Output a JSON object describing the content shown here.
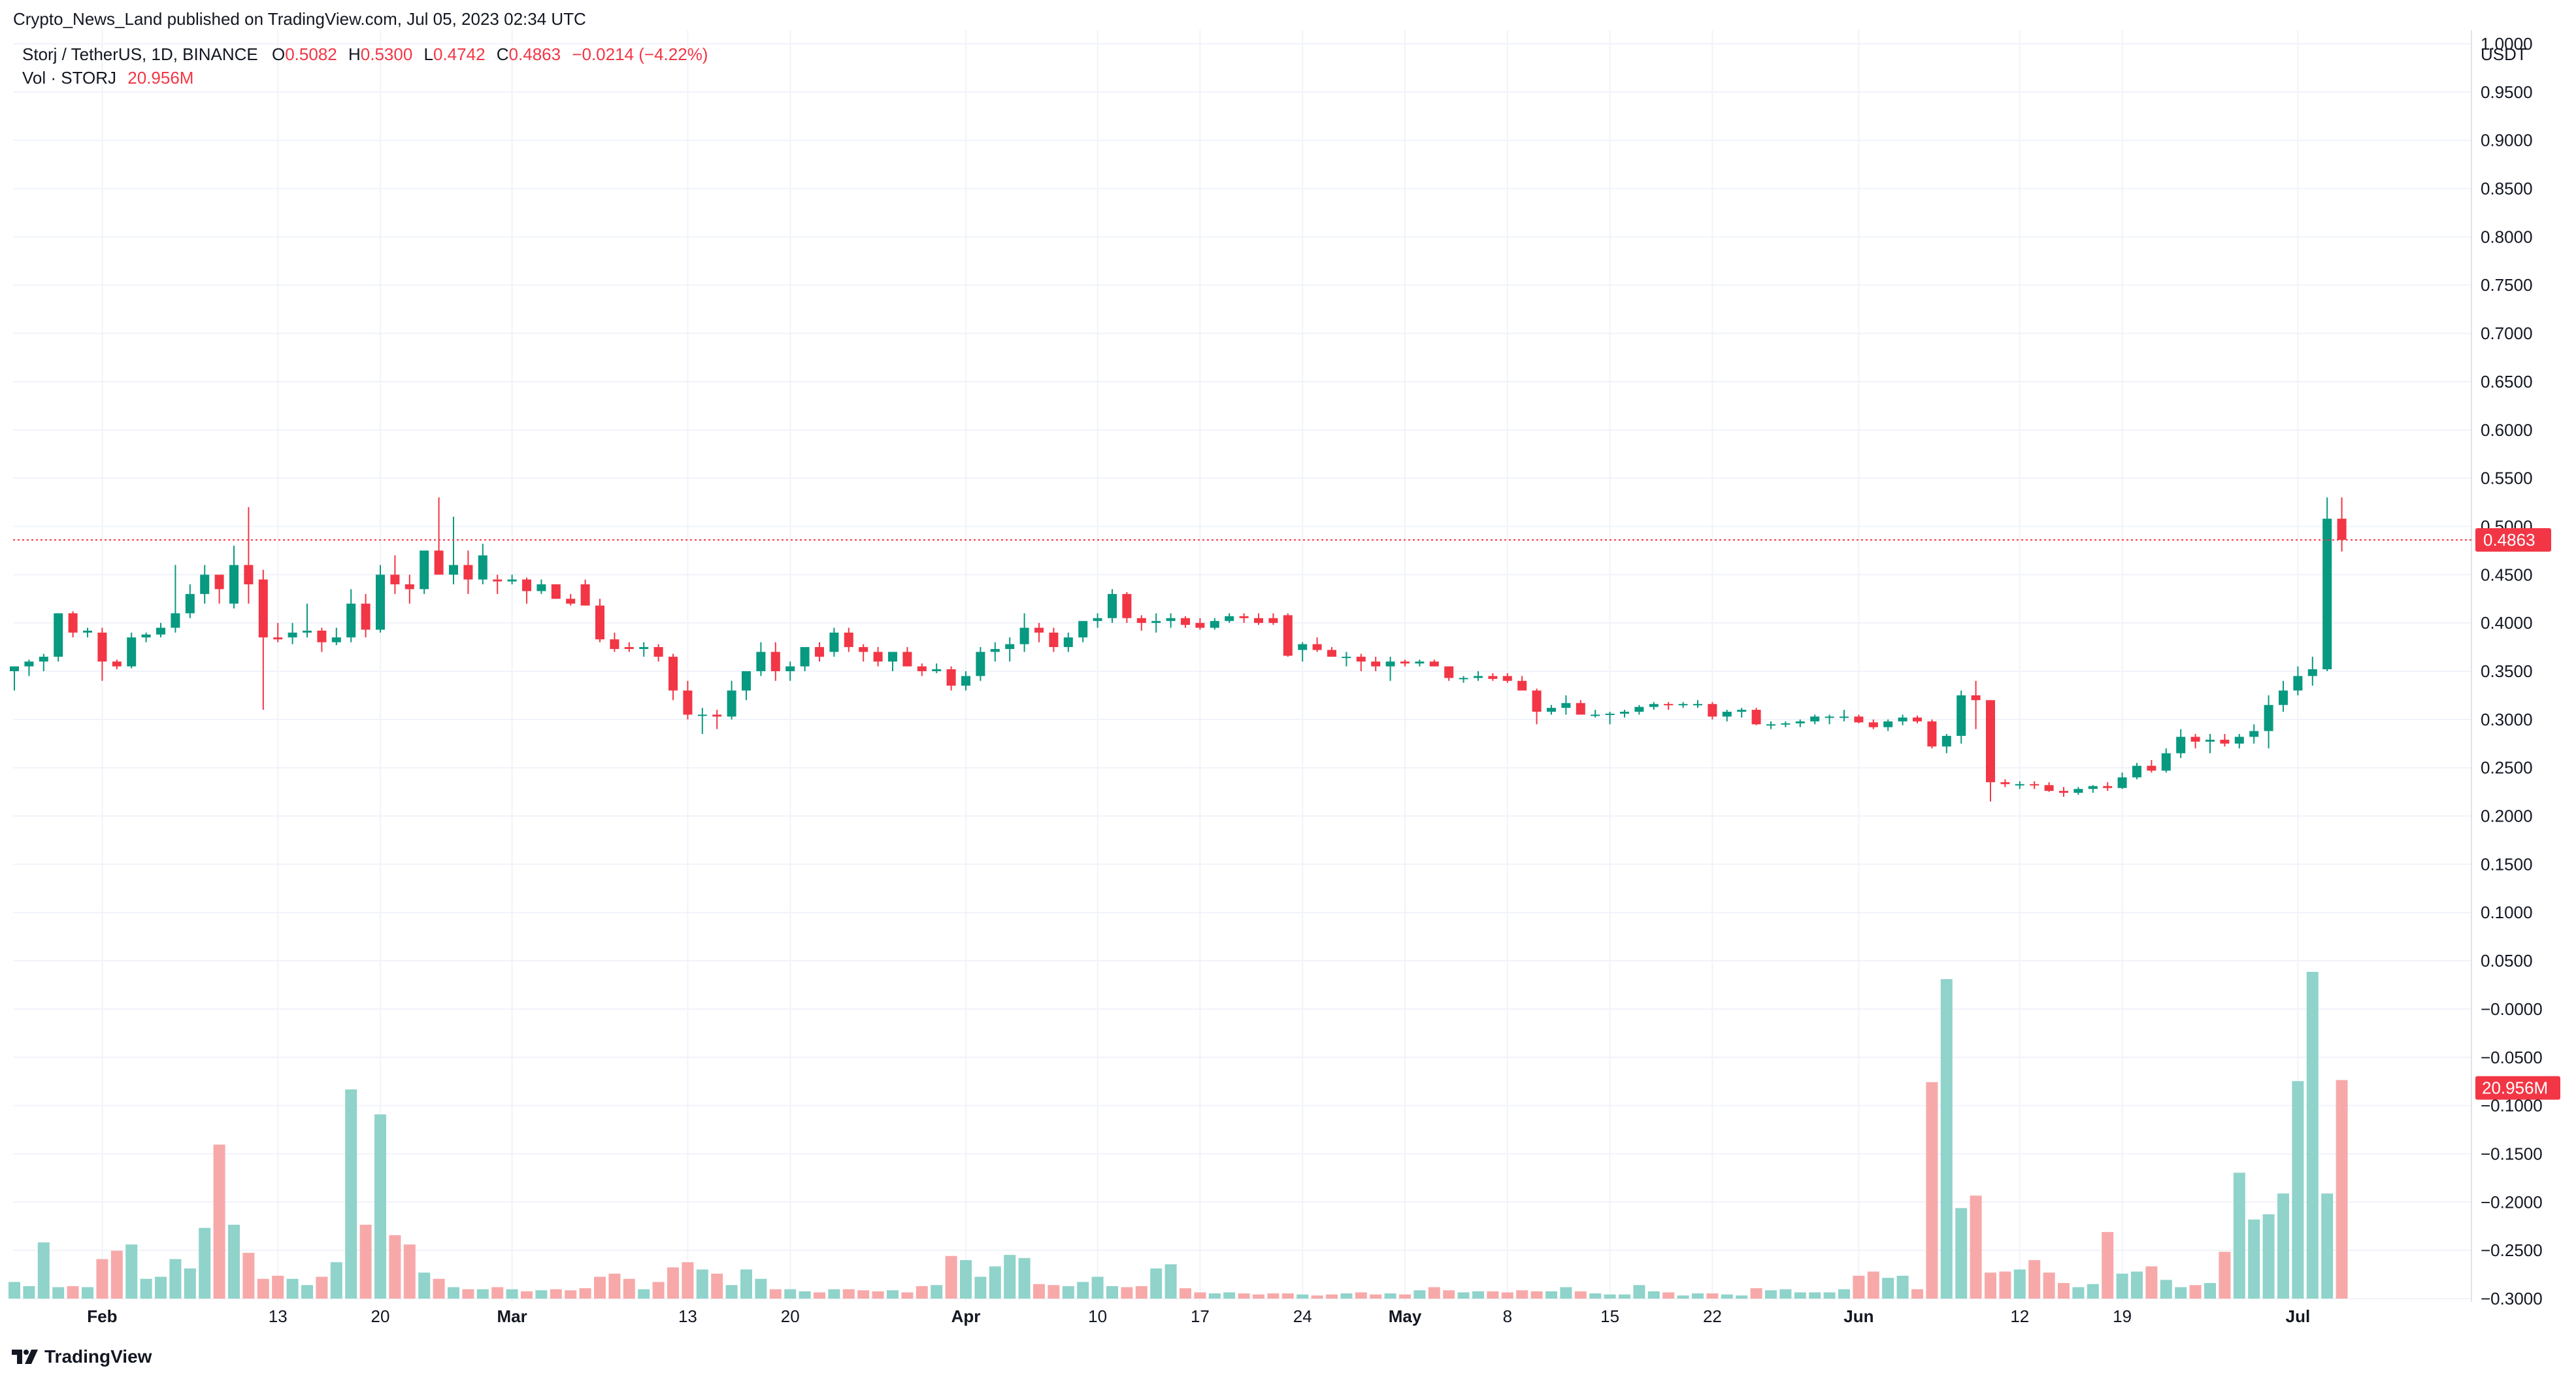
{
  "header": {
    "published": "Crypto_News_Land published on TradingView.com, Jul 05, 2023 02:34 UTC",
    "symbol": "Storj / TetherUS, 1D, BINANCE",
    "o_label": "O",
    "o_value": "0.5082",
    "h_label": "H",
    "h_value": "0.5300",
    "l_label": "L",
    "l_value": "0.4742",
    "c_label": "C",
    "c_value": "0.4863",
    "change": "−0.0214 (−4.22%)",
    "vol_label": "Vol · STORJ",
    "vol_value": "20.956M"
  },
  "footer": {
    "brand": "TradingView"
  },
  "colors": {
    "up": "#089981",
    "down": "#f23645",
    "vol_up": "#8fd3ca",
    "vol_down": "#f7a9a9",
    "grid": "#f0f3fa"
  },
  "chart_data": {
    "type": "candlestick",
    "currency": "USDT",
    "y_ticks": [
      "1.0000",
      "0.9500",
      "0.9000",
      "0.8500",
      "0.8000",
      "0.7500",
      "0.7000",
      "0.6500",
      "0.6000",
      "0.5500",
      "0.5000",
      "0.4500",
      "0.4000",
      "0.3500",
      "0.3000",
      "0.2500",
      "0.2000",
      "0.1500",
      "0.1000",
      "0.0500",
      "−0.0000",
      "−0.0500",
      "−0.1000",
      "−0.1500",
      "−0.2000",
      "−0.2500",
      "−0.3000"
    ],
    "ylim": [
      -0.3,
      1.0
    ],
    "x_ticks": [
      {
        "label": "Feb",
        "index": 6
      },
      {
        "label": "13",
        "index": 18
      },
      {
        "label": "20",
        "index": 25
      },
      {
        "label": "Mar",
        "index": 34
      },
      {
        "label": "13",
        "index": 46
      },
      {
        "label": "20",
        "index": 53
      },
      {
        "label": "Apr",
        "index": 65
      },
      {
        "label": "10",
        "index": 74
      },
      {
        "label": "17",
        "index": 81
      },
      {
        "label": "24",
        "index": 88
      },
      {
        "label": "May",
        "index": 95
      },
      {
        "label": "8",
        "index": 102
      },
      {
        "label": "15",
        "index": 109
      },
      {
        "label": "22",
        "index": 116
      },
      {
        "label": "Jun",
        "index": 126
      },
      {
        "label": "12",
        "index": 137
      },
      {
        "label": "19",
        "index": 144
      },
      {
        "label": "Jul",
        "index": 156
      }
    ],
    "last_price": "0.4863",
    "last_volume": "20.956M",
    "ohlc": [
      [
        0.35,
        0.355,
        0.33,
        0.355
      ],
      [
        0.355,
        0.362,
        0.345,
        0.36
      ],
      [
        0.36,
        0.368,
        0.35,
        0.365
      ],
      [
        0.365,
        0.41,
        0.36,
        0.41
      ],
      [
        0.41,
        0.412,
        0.385,
        0.39
      ],
      [
        0.39,
        0.395,
        0.385,
        0.392
      ],
      [
        0.39,
        0.395,
        0.34,
        0.36
      ],
      [
        0.36,
        0.362,
        0.352,
        0.355
      ],
      [
        0.355,
        0.39,
        0.353,
        0.385
      ],
      [
        0.385,
        0.39,
        0.38,
        0.388
      ],
      [
        0.388,
        0.4,
        0.385,
        0.395
      ],
      [
        0.395,
        0.46,
        0.39,
        0.41
      ],
      [
        0.41,
        0.44,
        0.405,
        0.43
      ],
      [
        0.43,
        0.46,
        0.42,
        0.45
      ],
      [
        0.45,
        0.44,
        0.42,
        0.435
      ],
      [
        0.42,
        0.48,
        0.415,
        0.46
      ],
      [
        0.46,
        0.52,
        0.42,
        0.44
      ],
      [
        0.445,
        0.455,
        0.31,
        0.385
      ],
      [
        0.385,
        0.4,
        0.38,
        0.383
      ],
      [
        0.385,
        0.4,
        0.378,
        0.39
      ],
      [
        0.39,
        0.42,
        0.385,
        0.392
      ],
      [
        0.392,
        0.395,
        0.37,
        0.38
      ],
      [
        0.38,
        0.395,
        0.377,
        0.385
      ],
      [
        0.385,
        0.435,
        0.38,
        0.42
      ],
      [
        0.42,
        0.43,
        0.385,
        0.393
      ],
      [
        0.393,
        0.46,
        0.39,
        0.45
      ],
      [
        0.45,
        0.47,
        0.43,
        0.44
      ],
      [
        0.44,
        0.45,
        0.42,
        0.435
      ],
      [
        0.435,
        0.47,
        0.43,
        0.475
      ],
      [
        0.475,
        0.53,
        0.46,
        0.45
      ],
      [
        0.45,
        0.51,
        0.44,
        0.46
      ],
      [
        0.46,
        0.475,
        0.43,
        0.445
      ],
      [
        0.445,
        0.482,
        0.44,
        0.47
      ],
      [
        0.445,
        0.45,
        0.43,
        0.443
      ],
      [
        0.443,
        0.45,
        0.44,
        0.445
      ],
      [
        0.445,
        0.447,
        0.42,
        0.433
      ],
      [
        0.433,
        0.445,
        0.43,
        0.44
      ],
      [
        0.44,
        0.44,
        0.425,
        0.425
      ],
      [
        0.425,
        0.43,
        0.418,
        0.42
      ],
      [
        0.44,
        0.445,
        0.42,
        0.418
      ],
      [
        0.418,
        0.425,
        0.38,
        0.383
      ],
      [
        0.383,
        0.39,
        0.37,
        0.373
      ],
      [
        0.375,
        0.38,
        0.37,
        0.373
      ],
      [
        0.373,
        0.38,
        0.365,
        0.375
      ],
      [
        0.375,
        0.378,
        0.36,
        0.365
      ],
      [
        0.365,
        0.368,
        0.32,
        0.33
      ],
      [
        0.33,
        0.34,
        0.3,
        0.305
      ],
      [
        0.305,
        0.312,
        0.285,
        0.305
      ],
      [
        0.305,
        0.31,
        0.29,
        0.303
      ],
      [
        0.303,
        0.34,
        0.3,
        0.33
      ],
      [
        0.33,
        0.345,
        0.32,
        0.35
      ],
      [
        0.35,
        0.38,
        0.345,
        0.37
      ],
      [
        0.37,
        0.38,
        0.34,
        0.35
      ],
      [
        0.35,
        0.36,
        0.34,
        0.355
      ],
      [
        0.355,
        0.37,
        0.35,
        0.375
      ],
      [
        0.375,
        0.38,
        0.36,
        0.365
      ],
      [
        0.37,
        0.395,
        0.365,
        0.39
      ],
      [
        0.39,
        0.395,
        0.37,
        0.375
      ],
      [
        0.375,
        0.378,
        0.36,
        0.37
      ],
      [
        0.37,
        0.375,
        0.355,
        0.36
      ],
      [
        0.36,
        0.37,
        0.35,
        0.37
      ],
      [
        0.37,
        0.375,
        0.355,
        0.355
      ],
      [
        0.355,
        0.358,
        0.345,
        0.35
      ],
      [
        0.35,
        0.358,
        0.348,
        0.352
      ],
      [
        0.352,
        0.355,
        0.33,
        0.335
      ],
      [
        0.335,
        0.35,
        0.33,
        0.345
      ],
      [
        0.345,
        0.375,
        0.34,
        0.37
      ],
      [
        0.37,
        0.38,
        0.36,
        0.373
      ],
      [
        0.373,
        0.385,
        0.36,
        0.378
      ],
      [
        0.378,
        0.41,
        0.37,
        0.395
      ],
      [
        0.395,
        0.4,
        0.38,
        0.39
      ],
      [
        0.39,
        0.395,
        0.37,
        0.375
      ],
      [
        0.375,
        0.39,
        0.37,
        0.385
      ],
      [
        0.385,
        0.4,
        0.38,
        0.402
      ],
      [
        0.402,
        0.41,
        0.395,
        0.405
      ],
      [
        0.405,
        0.435,
        0.4,
        0.43
      ],
      [
        0.43,
        0.432,
        0.4,
        0.405
      ],
      [
        0.405,
        0.408,
        0.392,
        0.4
      ],
      [
        0.4,
        0.41,
        0.39,
        0.402
      ],
      [
        0.402,
        0.41,
        0.395,
        0.405
      ],
      [
        0.405,
        0.407,
        0.395,
        0.398
      ],
      [
        0.4,
        0.405,
        0.393,
        0.395
      ],
      [
        0.395,
        0.405,
        0.393,
        0.402
      ],
      [
        0.402,
        0.41,
        0.4,
        0.407
      ],
      [
        0.407,
        0.41,
        0.4,
        0.405
      ],
      [
        0.405,
        0.41,
        0.398,
        0.4
      ],
      [
        0.405,
        0.41,
        0.398,
        0.4
      ],
      [
        0.408,
        0.41,
        0.365,
        0.366
      ],
      [
        0.372,
        0.38,
        0.36,
        0.378
      ],
      [
        0.378,
        0.385,
        0.37,
        0.372
      ],
      [
        0.372,
        0.375,
        0.365,
        0.365
      ],
      [
        0.365,
        0.37,
        0.355,
        0.365
      ],
      [
        0.365,
        0.368,
        0.35,
        0.36
      ],
      [
        0.36,
        0.365,
        0.35,
        0.355
      ],
      [
        0.355,
        0.365,
        0.34,
        0.36
      ],
      [
        0.36,
        0.362,
        0.355,
        0.358
      ],
      [
        0.358,
        0.362,
        0.355,
        0.36
      ],
      [
        0.36,
        0.362,
        0.355,
        0.355
      ],
      [
        0.355,
        0.355,
        0.34,
        0.343
      ],
      [
        0.343,
        0.345,
        0.338,
        0.343
      ],
      [
        0.343,
        0.35,
        0.34,
        0.345
      ],
      [
        0.345,
        0.348,
        0.34,
        0.342
      ],
      [
        0.345,
        0.348,
        0.338,
        0.34
      ],
      [
        0.34,
        0.345,
        0.33,
        0.33
      ],
      [
        0.33,
        0.332,
        0.295,
        0.308
      ],
      [
        0.308,
        0.315,
        0.305,
        0.312
      ],
      [
        0.312,
        0.325,
        0.305,
        0.317
      ],
      [
        0.317,
        0.32,
        0.305,
        0.305
      ],
      [
        0.305,
        0.31,
        0.302,
        0.305
      ],
      [
        0.305,
        0.308,
        0.295,
        0.306
      ],
      [
        0.306,
        0.31,
        0.302,
        0.308
      ],
      [
        0.308,
        0.315,
        0.305,
        0.313
      ],
      [
        0.313,
        0.318,
        0.31,
        0.316
      ],
      [
        0.316,
        0.318,
        0.31,
        0.315
      ],
      [
        0.315,
        0.318,
        0.312,
        0.316
      ],
      [
        0.316,
        0.32,
        0.312,
        0.316
      ],
      [
        0.316,
        0.318,
        0.3,
        0.303
      ],
      [
        0.303,
        0.31,
        0.298,
        0.308
      ],
      [
        0.308,
        0.312,
        0.302,
        0.31
      ],
      [
        0.31,
        0.312,
        0.294,
        0.295
      ],
      [
        0.295,
        0.298,
        0.29,
        0.295
      ],
      [
        0.295,
        0.298,
        0.292,
        0.296
      ],
      [
        0.296,
        0.3,
        0.292,
        0.298
      ],
      [
        0.298,
        0.305,
        0.295,
        0.303
      ],
      [
        0.303,
        0.305,
        0.295,
        0.303
      ],
      [
        0.303,
        0.31,
        0.298,
        0.303
      ],
      [
        0.303,
        0.305,
        0.296,
        0.297
      ],
      [
        0.297,
        0.3,
        0.29,
        0.292
      ],
      [
        0.292,
        0.3,
        0.288,
        0.298
      ],
      [
        0.298,
        0.305,
        0.294,
        0.302
      ],
      [
        0.302,
        0.304,
        0.296,
        0.298
      ],
      [
        0.298,
        0.3,
        0.27,
        0.272
      ],
      [
        0.272,
        0.285,
        0.265,
        0.283
      ],
      [
        0.283,
        0.33,
        0.275,
        0.325
      ],
      [
        0.325,
        0.34,
        0.29,
        0.32
      ],
      [
        0.32,
        0.32,
        0.215,
        0.235
      ],
      [
        0.235,
        0.238,
        0.23,
        0.233
      ],
      [
        0.233,
        0.236,
        0.228,
        0.233
      ],
      [
        0.233,
        0.236,
        0.228,
        0.232
      ],
      [
        0.232,
        0.235,
        0.225,
        0.226
      ],
      [
        0.226,
        0.23,
        0.22,
        0.224
      ],
      [
        0.224,
        0.23,
        0.222,
        0.228
      ],
      [
        0.228,
        0.232,
        0.224,
        0.231
      ],
      [
        0.231,
        0.235,
        0.226,
        0.229
      ],
      [
        0.229,
        0.245,
        0.228,
        0.24
      ],
      [
        0.24,
        0.255,
        0.238,
        0.252
      ],
      [
        0.252,
        0.258,
        0.245,
        0.247
      ],
      [
        0.247,
        0.27,
        0.245,
        0.265
      ],
      [
        0.265,
        0.29,
        0.26,
        0.282
      ],
      [
        0.282,
        0.285,
        0.27,
        0.277
      ],
      [
        0.277,
        0.285,
        0.265,
        0.279
      ],
      [
        0.279,
        0.285,
        0.272,
        0.275
      ],
      [
        0.275,
        0.285,
        0.27,
        0.282
      ],
      [
        0.282,
        0.295,
        0.275,
        0.288
      ],
      [
        0.288,
        0.325,
        0.27,
        0.315
      ],
      [
        0.315,
        0.34,
        0.308,
        0.33
      ],
      [
        0.33,
        0.355,
        0.325,
        0.345
      ],
      [
        0.345,
        0.365,
        0.335,
        0.352
      ],
      [
        0.352,
        0.53,
        0.35,
        0.508
      ],
      [
        0.508,
        0.53,
        0.474,
        0.486
      ]
    ],
    "volume_millions": [
      1.6,
      1.2,
      5.4,
      1.1,
      1.2,
      1.1,
      3.8,
      4.6,
      5.2,
      1.9,
      2.1,
      3.8,
      2.9,
      6.8,
      14.8,
      7.1,
      4.4,
      1.9,
      2.2,
      1.9,
      1.3,
      2.1,
      3.5,
      20.1,
      7.1,
      17.7,
      6.1,
      5.2,
      2.5,
      1.9,
      1.1,
      0.9,
      0.9,
      1.1,
      0.9,
      0.7,
      0.8,
      0.9,
      0.8,
      1.0,
      2.1,
      2.4,
      1.9,
      0.9,
      1.6,
      3.0,
      3.5,
      2.8,
      2.4,
      1.3,
      2.8,
      1.9,
      0.9,
      0.9,
      0.7,
      0.6,
      0.9,
      0.9,
      0.8,
      0.7,
      0.8,
      0.6,
      1.2,
      1.3,
      4.1,
      3.7,
      2.1,
      3.1,
      4.2,
      3.9,
      1.4,
      1.3,
      1.2,
      1.6,
      2.1,
      1.2,
      1.1,
      1.2,
      2.9,
      3.3,
      1.0,
      0.6,
      0.5,
      0.6,
      0.5,
      0.4,
      0.5,
      0.5,
      0.4,
      0.3,
      0.4,
      0.5,
      0.6,
      0.4,
      0.5,
      0.4,
      0.8,
      1.1,
      0.8,
      0.6,
      0.7,
      0.7,
      0.6,
      0.8,
      0.7,
      0.7,
      1.1,
      0.7,
      0.5,
      0.4,
      0.4,
      1.3,
      0.7,
      0.6,
      0.3,
      0.5,
      0.5,
      0.4,
      0.3,
      1.0,
      0.8,
      0.9,
      0.6,
      0.6,
      0.6,
      0.9,
      2.2,
      2.6,
      2.0,
      2.2,
      0.9,
      20.8,
      30.7,
      8.7,
      9.9,
      2.5,
      2.6,
      2.8,
      3.7,
      2.5,
      1.5,
      1.1,
      1.4,
      6.4,
      2.4,
      2.6,
      3.1,
      1.8,
      1.1,
      1.3,
      1.5,
      4.5,
      12.1,
      7.6,
      8.1,
      10.1,
      20.9,
      31.4,
      10.1,
      21.0
    ]
  }
}
